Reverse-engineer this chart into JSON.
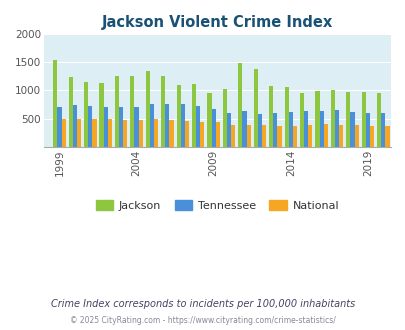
{
  "title": "Jackson Violent Crime Index",
  "subtitle": "Crime Index corresponds to incidents per 100,000 inhabitants",
  "footer": "© 2025 CityRating.com - https://www.cityrating.com/crime-statistics/",
  "years": [
    1999,
    2000,
    2001,
    2002,
    2003,
    2004,
    2005,
    2006,
    2007,
    2008,
    2009,
    2010,
    2011,
    2012,
    2013,
    2014,
    2015,
    2016,
    2017,
    2018,
    2019,
    2020
  ],
  "jackson": [
    1540,
    1240,
    1140,
    1130,
    1250,
    1250,
    1340,
    1250,
    1100,
    1110,
    960,
    1030,
    1480,
    1380,
    1080,
    1060,
    950,
    990,
    1000,
    970,
    970,
    960
  ],
  "tennessee": [
    700,
    740,
    720,
    700,
    700,
    700,
    760,
    750,
    750,
    720,
    660,
    600,
    640,
    580,
    600,
    620,
    630,
    640,
    650,
    620,
    600,
    590
  ],
  "national": [
    500,
    500,
    500,
    490,
    480,
    470,
    490,
    480,
    460,
    440,
    430,
    390,
    380,
    380,
    370,
    370,
    390,
    400,
    390,
    380,
    370,
    360
  ],
  "jackson_color": "#8dc63f",
  "tennessee_color": "#4a90d9",
  "national_color": "#f5a623",
  "plot_bg": "#ddeef5",
  "ylim": [
    0,
    2000
  ],
  "yticks": [
    0,
    500,
    1000,
    1500,
    2000
  ],
  "xtick_year_labels": [
    "1999",
    "2004",
    "2009",
    "2014",
    "2019"
  ],
  "xtick_year_values": [
    1999,
    2004,
    2009,
    2014,
    2019
  ],
  "title_color": "#1a5276",
  "subtitle_color": "#444466",
  "footer_color": "#888899",
  "bar_width": 0.27
}
